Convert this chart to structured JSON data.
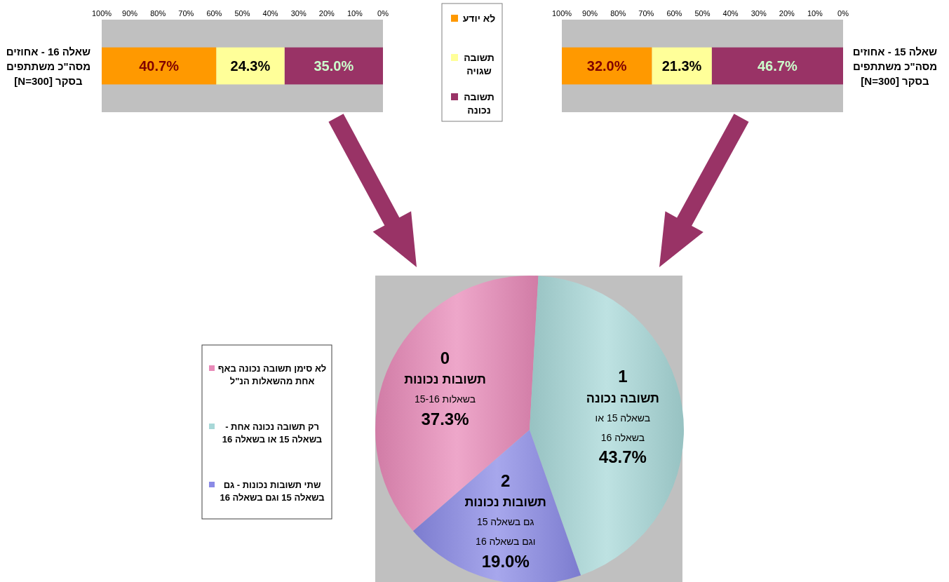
{
  "chart_data": [
    {
      "type": "bar",
      "orientation": "horizontal",
      "stacked": true,
      "categories": [
        "שאלה 15 - אחוזים מסה\"כ משתתפים בסקר [N=300]"
      ],
      "series": [
        {
          "name": "תשובה נכונה",
          "color": "#993366",
          "values": [
            46.7
          ],
          "value_labels": [
            "46.7%"
          ]
        },
        {
          "name": "תשובה שגויה",
          "color": "#ffff99",
          "values": [
            21.3
          ],
          "value_labels": [
            "21.3%"
          ]
        },
        {
          "name": "לא יודע",
          "color": "#ff9900",
          "values": [
            32.0
          ],
          "value_labels": [
            "32.0%"
          ]
        }
      ],
      "xlim": [
        100,
        0
      ],
      "xticks": [
        {
          "value": 100,
          "label": "100%"
        },
        {
          "value": 90,
          "label": "90%"
        },
        {
          "value": 80,
          "label": "80%"
        },
        {
          "value": 70,
          "label": "70%"
        },
        {
          "value": 60,
          "label": "60%"
        },
        {
          "value": 50,
          "label": "50%"
        },
        {
          "value": 40,
          "label": "40%"
        },
        {
          "value": 30,
          "label": "30%"
        },
        {
          "value": 20,
          "label": "20%"
        },
        {
          "value": 10,
          "label": "10%"
        },
        {
          "value": 0,
          "label": "0%"
        }
      ],
      "legend": "left"
    },
    {
      "type": "bar",
      "orientation": "horizontal",
      "stacked": true,
      "categories": [
        "שאלה 16 - אחוזים מסה\"כ משתתפים בסקר [N=300]"
      ],
      "series": [
        {
          "color": "#993366",
          "values": [
            35.0
          ],
          "value_labels": [
            "35.0%"
          ]
        },
        {
          "color": "#ffff99",
          "values": [
            24.3
          ],
          "value_labels": [
            "24.3%"
          ]
        },
        {
          "color": "#ff9900",
          "values": [
            40.7
          ],
          "value_labels": [
            "40.7%"
          ]
        }
      ],
      "xlim": [
        100,
        0
      ],
      "xticks": [
        {
          "value": 100,
          "label": "100%"
        },
        {
          "value": 90,
          "label": "90%"
        },
        {
          "value": 80,
          "label": "80%"
        },
        {
          "value": 70,
          "label": "70%"
        },
        {
          "value": 60,
          "label": "60%"
        },
        {
          "value": 50,
          "label": "50%"
        },
        {
          "value": 40,
          "label": "40%"
        },
        {
          "value": 30,
          "label": "30%"
        },
        {
          "value": 20,
          "label": "20%"
        },
        {
          "value": 10,
          "label": "10%"
        },
        {
          "value": 0,
          "label": "0%"
        }
      ]
    },
    {
      "type": "pie",
      "categories": [
        "לא סימן תשובה נכונה באף אחת מהשאלות הנ\"ל",
        "רק תשובה נכונה אחת - בשאלה 15 או בשאלה 16",
        "שתי תשובות נכונות - גם בשאלה 15 וגם בשאלה 16"
      ],
      "values": [
        37.3,
        43.7,
        19.0
      ],
      "colors": [
        "#e88ab8",
        "#a8d8d8",
        "#8a8ae6"
      ],
      "value_labels": [
        "37.3%",
        "43.7%",
        "19.0%"
      ],
      "annotations": [
        "0\nתשובות נכונות\nבשאלות 15-16",
        "1\nתשובה נכונה\nבשאלה 15 או\nבשאלה 16",
        "2\nתשובות נכונות\nגם בשאלה 15\nוגם בשאלה 16"
      ],
      "legend": "left"
    }
  ]
}
